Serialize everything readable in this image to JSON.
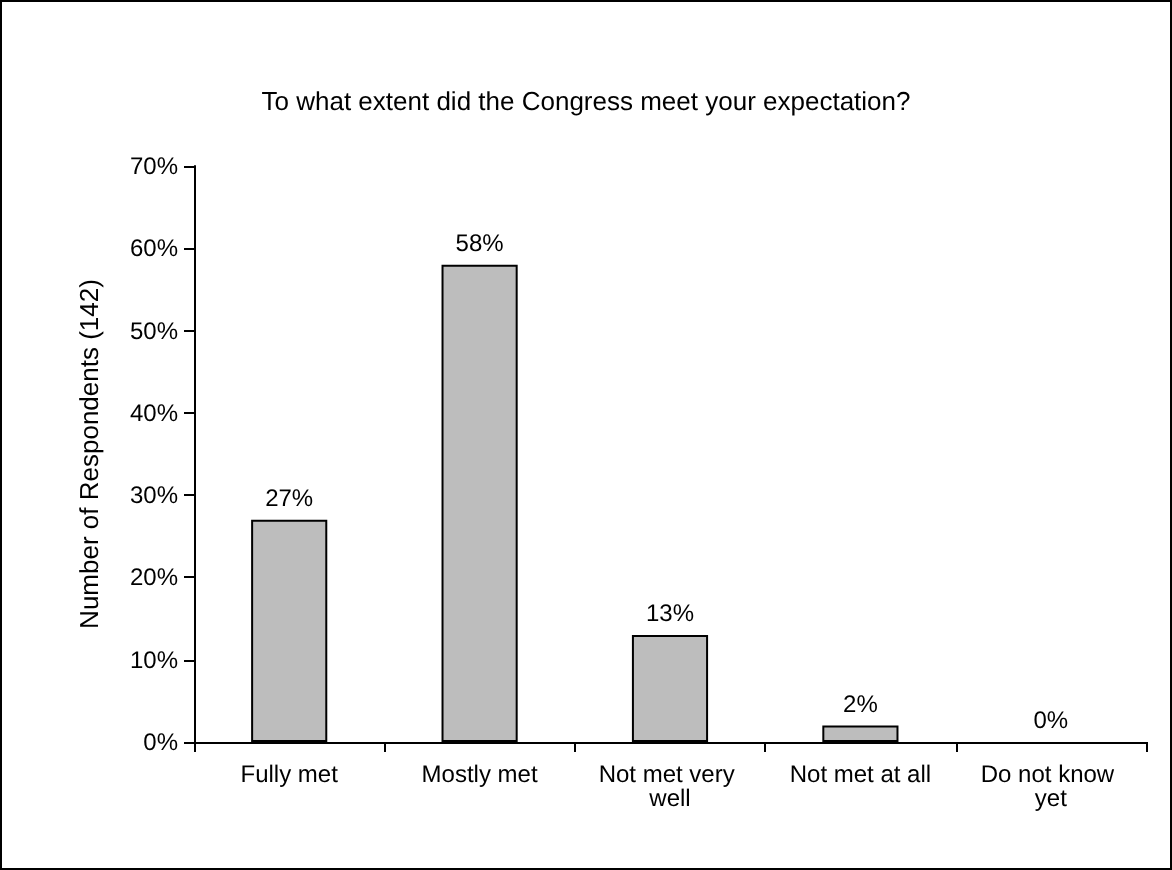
{
  "chart_data": {
    "type": "bar",
    "title": "To what extent did the Congress meet your expectation?",
    "ylabel": "Number of Respondents (142)",
    "categories": [
      "Fully met",
      "Mostly met",
      "Not met very well",
      "Not met at all",
      "Do not know yet"
    ],
    "values": [
      27,
      58,
      13,
      2,
      0
    ],
    "value_labels": [
      "27%",
      "58%",
      "13%",
      "2%",
      "0%"
    ],
    "color": "#bdbdbd",
    "ylim": [
      0,
      70
    ],
    "yticks": [
      {
        "value": 0,
        "label": "0%"
      },
      {
        "value": 10,
        "label": "10%"
      },
      {
        "value": 20,
        "label": "20%"
      },
      {
        "value": 30,
        "label": "30%"
      },
      {
        "value": 40,
        "label": "40%"
      },
      {
        "value": 50,
        "label": "50%"
      },
      {
        "value": 60,
        "label": "60%"
      },
      {
        "value": 70,
        "label": "70%"
      }
    ],
    "grid": false
  }
}
